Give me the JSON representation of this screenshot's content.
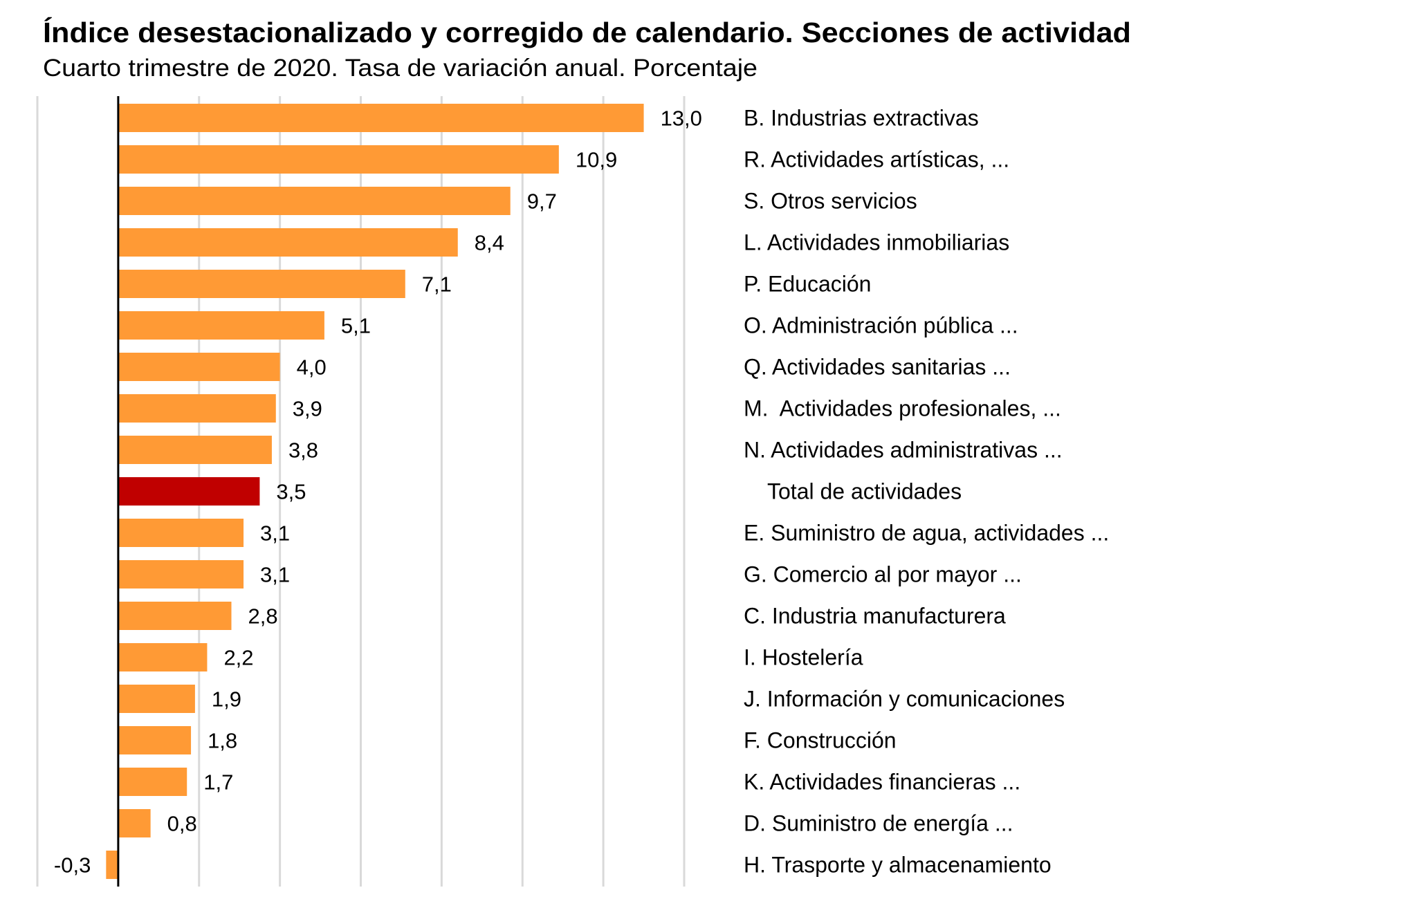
{
  "chart_data": {
    "type": "bar",
    "orientation": "horizontal",
    "title": "Índice desestacionalizado y corregido de calendario. Secciones de actividad",
    "subtitle": "Cuarto trimestre de 2020. Tasa de variación anual. Porcentaje",
    "xlabel": "",
    "ylabel": "",
    "xlim": [
      -2,
      14
    ],
    "grid_step": 2,
    "grid": true,
    "tick_labels_shown": false,
    "categories": [
      "B. Industrias extractivas",
      "R. Actividades artísticas, ...",
      "S. Otros servicios",
      "L. Actividades inmobiliarias",
      "P. Educación",
      "O. Administración pública ...",
      "Q. Actividades sanitarias ...",
      "M.  Actividades profesionales, ...",
      "N. Actividades administrativas ...",
      "Total de actividades",
      "E. Suministro de agua, actividades ...",
      "G. Comercio al por mayor ...",
      "C. Industria manufacturera",
      "I. Hostelería",
      "J. Información y comunicaciones",
      "F. Construcción",
      "K. Actividades financieras ...",
      "D. Suministro de energía ...",
      "H. Trasporte y almacenamiento"
    ],
    "values": [
      13.0,
      10.9,
      9.7,
      8.4,
      7.1,
      5.1,
      4.0,
      3.9,
      3.8,
      3.5,
      3.1,
      3.1,
      2.8,
      2.2,
      1.9,
      1.8,
      1.7,
      0.8,
      -0.3
    ],
    "value_labels": [
      "13,0",
      "10,9",
      "9,7",
      "8,4",
      "7,1",
      "5,1",
      "4,0",
      "3,9",
      "3,8",
      "3,5",
      "3,1",
      "3,1",
      "2,8",
      "2,2",
      "1,9",
      "1,8",
      "1,7",
      "0,8",
      "-0,3"
    ],
    "highlight_index": 9,
    "colors": {
      "bar": "#FF9A35",
      "highlight": "#C00000",
      "grid": "#D9D9D9",
      "axis": "#000000"
    },
    "legend": "none"
  }
}
